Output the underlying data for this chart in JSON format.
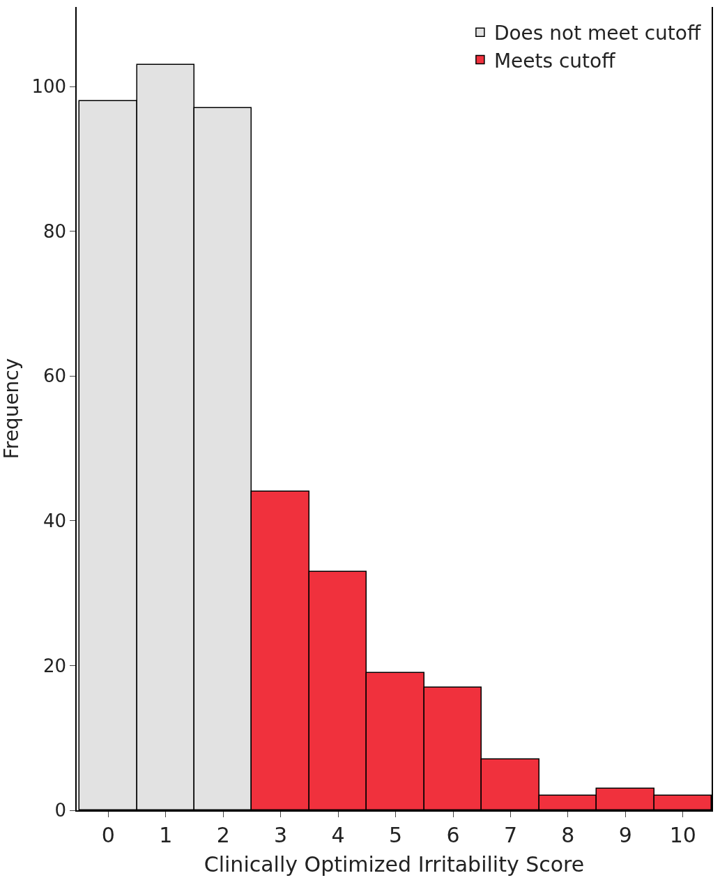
{
  "chart_data": {
    "type": "bar",
    "xlabel": "Clinically Optimized Irritability Score",
    "ylabel": "Frequency",
    "categories": [
      "0",
      "1",
      "2",
      "3",
      "4",
      "5",
      "6",
      "7",
      "8",
      "9",
      "10"
    ],
    "series": [
      {
        "name": "Does not meet cutoff",
        "color": "#e2e2e2",
        "values": [
          98,
          103,
          97,
          null,
          null,
          null,
          null,
          null,
          null,
          null,
          null
        ]
      },
      {
        "name": "Meets cutoff",
        "color": "#f0313d",
        "values": [
          null,
          null,
          null,
          44,
          33,
          19,
          17,
          7,
          2,
          3,
          2
        ]
      }
    ],
    "ylim": [
      0,
      111
    ],
    "yticks": [
      0,
      20,
      40,
      60,
      80,
      100
    ],
    "legend": "top right"
  }
}
